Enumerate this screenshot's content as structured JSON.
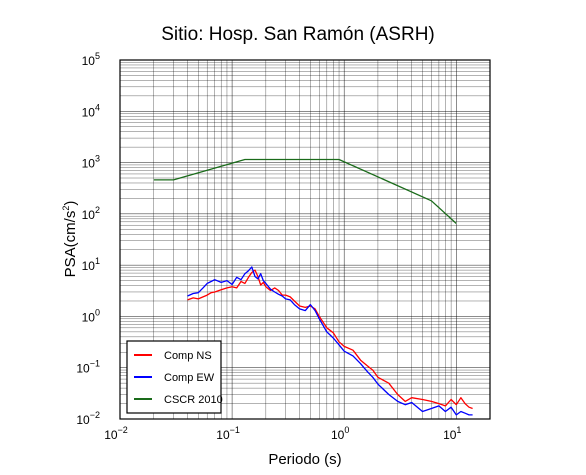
{
  "chart_data": {
    "type": "line",
    "title": "Sitio: Hosp. San Ramón (ASRH)",
    "xlabel": "Periodo (s)",
    "ylabel": "PSA(cm/s²)",
    "ylabel_main": "PSA(cm/s",
    "ylabel_sup": "2",
    "ylabel_tail": ")",
    "x_scale": "log",
    "y_scale": "log",
    "xlim": [
      0.01,
      20
    ],
    "ylim": [
      0.01,
      100000
    ],
    "grid": true,
    "legend_position": "bottom-left",
    "x_ticks": [
      {
        "value": 0.01,
        "base": "10",
        "exp": "−2"
      },
      {
        "value": 0.1,
        "base": "10",
        "exp": "−1"
      },
      {
        "value": 1,
        "base": "10",
        "exp": "0"
      },
      {
        "value": 10,
        "base": "10",
        "exp": "1"
      }
    ],
    "y_ticks": [
      {
        "value": 0.01,
        "base": "10",
        "exp": "−2"
      },
      {
        "value": 0.1,
        "base": "10",
        "exp": "−1"
      },
      {
        "value": 1,
        "base": "10",
        "exp": "0"
      },
      {
        "value": 10,
        "base": "10",
        "exp": "1"
      },
      {
        "value": 100,
        "base": "10",
        "exp": "2"
      },
      {
        "value": 1000,
        "base": "10",
        "exp": "3"
      },
      {
        "value": 10000,
        "base": "10",
        "exp": "4"
      },
      {
        "value": 100000,
        "base": "10",
        "exp": "5"
      }
    ],
    "series": [
      {
        "name": "Comp NS",
        "color": "#ff0000",
        "x": [
          0.04,
          0.045,
          0.05,
          0.055,
          0.06,
          0.065,
          0.07,
          0.08,
          0.09,
          0.1,
          0.11,
          0.12,
          0.13,
          0.14,
          0.15,
          0.16,
          0.17,
          0.18,
          0.19,
          0.2,
          0.22,
          0.24,
          0.26,
          0.28,
          0.3,
          0.33,
          0.36,
          0.4,
          0.45,
          0.5,
          0.55,
          0.6,
          0.7,
          0.8,
          0.9,
          1.0,
          1.2,
          1.4,
          1.6,
          1.8,
          2.0,
          2.5,
          3.0,
          3.5,
          4.0,
          5.0,
          6.0,
          7.0,
          8.0,
          9.0,
          10.0,
          11.0,
          12.0,
          13.0,
          14.0
        ],
        "y": [
          2.1,
          2.3,
          2.2,
          2.4,
          2.6,
          2.9,
          3.0,
          3.3,
          3.6,
          3.8,
          3.6,
          4.8,
          4.4,
          5.8,
          7.2,
          8.0,
          6.0,
          4.1,
          4.6,
          3.8,
          3.2,
          3.6,
          3.2,
          2.6,
          2.6,
          2.4,
          2.0,
          1.6,
          1.5,
          1.6,
          1.4,
          1.0,
          0.6,
          0.48,
          0.32,
          0.26,
          0.22,
          0.14,
          0.11,
          0.09,
          0.065,
          0.05,
          0.03,
          0.022,
          0.026,
          0.024,
          0.022,
          0.02,
          0.018,
          0.024,
          0.019,
          0.026,
          0.02,
          0.017,
          0.016
        ]
      },
      {
        "name": "Comp EW",
        "color": "#0000ff",
        "x": [
          0.04,
          0.045,
          0.05,
          0.055,
          0.06,
          0.065,
          0.07,
          0.08,
          0.09,
          0.1,
          0.11,
          0.12,
          0.13,
          0.14,
          0.15,
          0.16,
          0.17,
          0.18,
          0.19,
          0.2,
          0.22,
          0.24,
          0.26,
          0.28,
          0.3,
          0.33,
          0.36,
          0.4,
          0.45,
          0.5,
          0.55,
          0.6,
          0.7,
          0.8,
          0.9,
          1.0,
          1.2,
          1.4,
          1.6,
          1.8,
          2.0,
          2.5,
          3.0,
          3.5,
          4.0,
          5.0,
          6.0,
          7.0,
          8.0,
          9.0,
          10.0,
          11.0,
          12.0,
          13.0,
          14.0
        ],
        "y": [
          2.5,
          2.8,
          2.9,
          3.6,
          4.4,
          4.8,
          5.2,
          4.6,
          5.0,
          4.2,
          5.8,
          5.2,
          6.8,
          7.8,
          9.2,
          6.0,
          5.4,
          6.8,
          5.0,
          4.4,
          3.4,
          3.0,
          2.7,
          2.5,
          2.2,
          2.1,
          1.7,
          1.4,
          1.3,
          1.7,
          1.3,
          0.9,
          0.5,
          0.38,
          0.28,
          0.21,
          0.17,
          0.12,
          0.085,
          0.065,
          0.048,
          0.03,
          0.022,
          0.019,
          0.021,
          0.014,
          0.016,
          0.018,
          0.014,
          0.017,
          0.012,
          0.014,
          0.013,
          0.012,
          0.012
        ]
      },
      {
        "name": "CSCR 2010",
        "color": "#1a6b1a",
        "x": [
          0.02,
          0.03,
          0.13,
          0.9,
          6.0,
          10.0
        ],
        "y": [
          460,
          460,
          1150,
          1150,
          180,
          65
        ]
      }
    ]
  }
}
